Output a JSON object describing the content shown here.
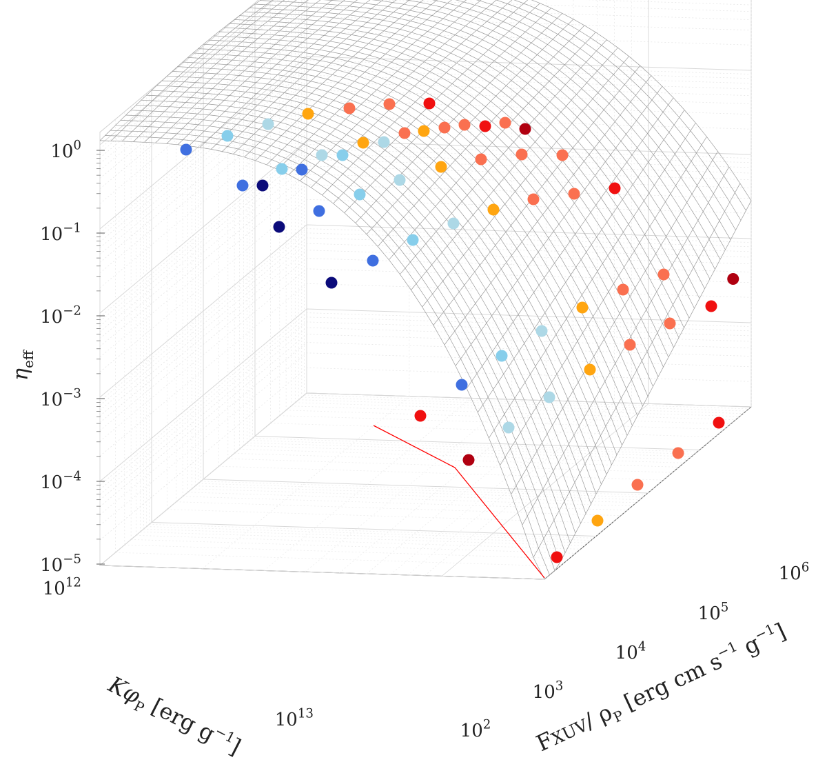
{
  "chart_data": {
    "type": "scatter3d-surface",
    "x_axis": {
      "label_main": "F",
      "label_sub": "XUV",
      "label_rest": "/ ρ",
      "label_rest_sub": "P",
      "label_units_a": " [erg cm s",
      "label_units_exp1": "−1",
      "label_units_b": " g",
      "label_units_exp2": "−1",
      "label_units_c": "]",
      "scale": "log",
      "range": [
        100,
        1000000
      ],
      "ticks": [
        {
          "base": "10",
          "exp": "2"
        },
        {
          "base": "10",
          "exp": "3"
        },
        {
          "base": "10",
          "exp": "4"
        },
        {
          "base": "10",
          "exp": "5"
        },
        {
          "base": "10",
          "exp": "6"
        }
      ]
    },
    "y_axis": {
      "label_main": "Kφ",
      "label_sub": "P",
      "label_units_a": " [erg g",
      "label_units_exp": "−1",
      "label_units_b": "]",
      "scale": "log",
      "range": [
        1000000000000,
        20000000000000
      ],
      "ticks": [
        {
          "base": "10",
          "exp": "12"
        },
        {
          "base": "10",
          "exp": "13"
        }
      ]
    },
    "z_axis": {
      "label_main": "η",
      "label_sub": "eff",
      "scale": "log",
      "range": [
        1e-05,
        1
      ],
      "ticks": [
        {
          "base": "10",
          "exp": "0"
        },
        {
          "base": "10",
          "exp": "−1"
        },
        {
          "base": "10",
          "exp": "−2"
        },
        {
          "base": "10",
          "exp": "−3"
        },
        {
          "base": "10",
          "exp": "−4"
        },
        {
          "base": "10",
          "exp": "−5"
        }
      ]
    },
    "grid": true,
    "surface": "fitted efficiency surface (wireframe mesh)",
    "boundary_line_color": "#ff0000",
    "surface_line_color": "#9a9a9a",
    "colors": {
      "navy": "#0b0b7a",
      "royalblue": "#3f6fe0",
      "skyblue": "#87ceeb",
      "lightblue": "#add8e6",
      "orange": "#ffa510",
      "salmon": "#fa7050",
      "red": "#f01010",
      "darkred": "#b00010"
    },
    "points": [
      {
        "logF": 2.05,
        "logK": 12.0,
        "log_eta": 0.0,
        "color": "royalblue"
      },
      {
        "logF": 2.45,
        "logK": 12.0,
        "log_eta": 0.1,
        "color": "skyblue"
      },
      {
        "logF": 2.85,
        "logF2": 0,
        "logK": 12.0,
        "log_eta": 0.15,
        "color": "lightblue"
      },
      {
        "logF": 3.3,
        "logK": 12.0,
        "log_eta": 0.2,
        "color": "orange"
      },
      {
        "logF": 3.75,
        "logK": 12.0,
        "log_eta": 0.23,
        "color": "salmon"
      },
      {
        "logF": 4.2,
        "logK": 12.0,
        "log_eta": 0.25,
        "color": "salmon"
      },
      {
        "logF": 4.65,
        "logK": 12.0,
        "log_eta": 0.27,
        "color": "red"
      },
      {
        "logF": 2.05,
        "logK": 12.25,
        "log_eta": -0.37,
        "color": "royalblue"
      },
      {
        "logF": 2.25,
        "logK": 12.25,
        "log_eta": -0.36,
        "color": "navy"
      },
      {
        "logF": 2.55,
        "logK": 12.2,
        "log_eta": -0.15,
        "color": "skyblue"
      },
      {
        "logF": 2.7,
        "logK": 12.2,
        "log_eta": -0.17,
        "color": "royalblue"
      },
      {
        "logF": 3.0,
        "logK": 12.2,
        "log_eta": -0.05,
        "color": "lightblue"
      },
      {
        "logF": 3.2,
        "logK": 12.2,
        "log_eta": -0.03,
        "color": "skyblue"
      },
      {
        "logF": 3.5,
        "logK": 12.2,
        "log_eta": 0.0,
        "color": "orange"
      },
      {
        "logF": 3.75,
        "logK": 12.2,
        "log_eta": 0.02,
        "color": "lightblue"
      },
      {
        "logF": 4.0,
        "logK": 12.2,
        "log_eta": 0.04,
        "color": "salmon"
      },
      {
        "logF": 4.2,
        "logK": 12.2,
        "log_eta": 0.05,
        "color": "orange"
      },
      {
        "logF": 4.45,
        "logK": 12.2,
        "log_eta": 0.06,
        "color": "salmon"
      },
      {
        "logF": 4.65,
        "logK": 12.2,
        "log_eta": 0.08,
        "color": "salmon"
      },
      {
        "logF": 4.9,
        "logK": 12.2,
        "log_eta": 0.08,
        "color": "red"
      },
      {
        "logF": 5.1,
        "logK": 12.2,
        "log_eta": 0.09,
        "color": "salmon"
      },
      {
        "logF": 5.3,
        "logK": 12.2,
        "log_eta": 0.08,
        "color": "darkred"
      },
      {
        "logF": 2.1,
        "logK": 12.45,
        "log_eta": -0.9,
        "color": "navy"
      },
      {
        "logF": 2.55,
        "logK": 12.45,
        "log_eta": -0.7,
        "color": "royalblue"
      },
      {
        "logF": 2.95,
        "logK": 12.45,
        "log_eta": -0.5,
        "color": "skyblue"
      },
      {
        "logF": 3.35,
        "logK": 12.45,
        "log_eta": -0.4,
        "color": "lightblue"
      },
      {
        "logF": 3.75,
        "logK": 12.45,
        "log_eta": -0.3,
        "color": "orange"
      },
      {
        "logF": 4.15,
        "logK": 12.45,
        "log_eta": -0.25,
        "color": "salmon"
      },
      {
        "logF": 4.6,
        "logK": 12.45,
        "log_eta": -0.2,
        "color": "salmon"
      },
      {
        "logF": 5.0,
        "logK": 12.45,
        "log_eta": -0.2,
        "color": "salmon"
      },
      {
        "logF": 5.4,
        "logK": 12.45,
        "log_eta": -0.2,
        "color": "red"
      },
      {
        "logF": 2.3,
        "logK": 12.75,
        "log_eta": -1.9,
        "color": "navy"
      },
      {
        "logF": 2.7,
        "logK": 12.75,
        "log_eta": -1.4,
        "color": "royalblue"
      },
      {
        "logF": 3.1,
        "logK": 12.75,
        "log_eta": -1.1,
        "color": "skyblue"
      },
      {
        "logF": 3.5,
        "logK": 12.75,
        "log_eta": -0.8,
        "color": "lightblue"
      },
      {
        "logF": 3.9,
        "logK": 12.75,
        "log_eta": -0.6,
        "color": "orange"
      },
      {
        "logF": 4.3,
        "logK": 12.75,
        "log_eta": -0.5,
        "color": "salmon"
      },
      {
        "logF": 4.7,
        "logK": 12.75,
        "log_eta": -0.45,
        "color": "salmon"
      },
      {
        "logF": 5.1,
        "logK": 12.75,
        "log_eta": -0.4,
        "color": "red"
      },
      {
        "logF": 2.8,
        "logK": 13.1,
        "log_eta": -2.9,
        "color": "royalblue"
      },
      {
        "logF": 3.2,
        "logK": 13.1,
        "log_eta": -2.3,
        "color": "skyblue"
      },
      {
        "logF": 3.55,
        "logK": 13.1,
        "log_eta": -1.9,
        "color": "lightblue"
      },
      {
        "logF": 3.95,
        "logK": 13.1,
        "log_eta": -1.6,
        "color": "orange"
      },
      {
        "logF": 4.35,
        "logK": 13.1,
        "log_eta": -1.4,
        "color": "salmon"
      },
      {
        "logF": 4.75,
        "logK": 13.1,
        "log_eta": -1.3,
        "color": "salmon"
      },
      {
        "logF": 5.15,
        "logK": 13.1,
        "log_eta": -1.25,
        "color": "red"
      },
      {
        "logF": 5.55,
        "logK": 13.1,
        "log_eta": -1.2,
        "color": "darkred"
      },
      {
        "logF": 3.25,
        "logK": 13.3,
        "log_eta": -3.3,
        "color": "lightblue"
      },
      {
        "logF": 3.7,
        "logK": 13.3,
        "log_eta": -2.8,
        "color": "lightblue"
      },
      {
        "logF": 4.0,
        "logK": 13.3,
        "log_eta": -2.4,
        "color": "orange"
      },
      {
        "logF": 4.45,
        "logK": 13.3,
        "log_eta": -2.2,
        "color": "salmon"
      },
      {
        "logF": 4.85,
        "logK": 13.3,
        "log_eta": -2.0,
        "color": "salmon"
      },
      {
        "logF": 5.25,
        "logK": 13.3,
        "log_eta": -1.9,
        "color": "red"
      },
      {
        "logF": 4.0,
        "logK": 13.3,
        "log_eta": -4.8,
        "color": "orange"
      },
      {
        "logF": 4.45,
        "logK": 13.3,
        "log_eta": -4.3,
        "color": "salmon"
      },
      {
        "logF": 4.85,
        "logK": 13.3,
        "log_eta": -3.9,
        "color": "salmon"
      },
      {
        "logF": 5.25,
        "logK": 13.3,
        "log_eta": -3.6,
        "color": "red"
      },
      {
        "logF": 5.65,
        "logK": 13.3,
        "log_eta": -3.3,
        "color": "darkred"
      }
    ]
  }
}
